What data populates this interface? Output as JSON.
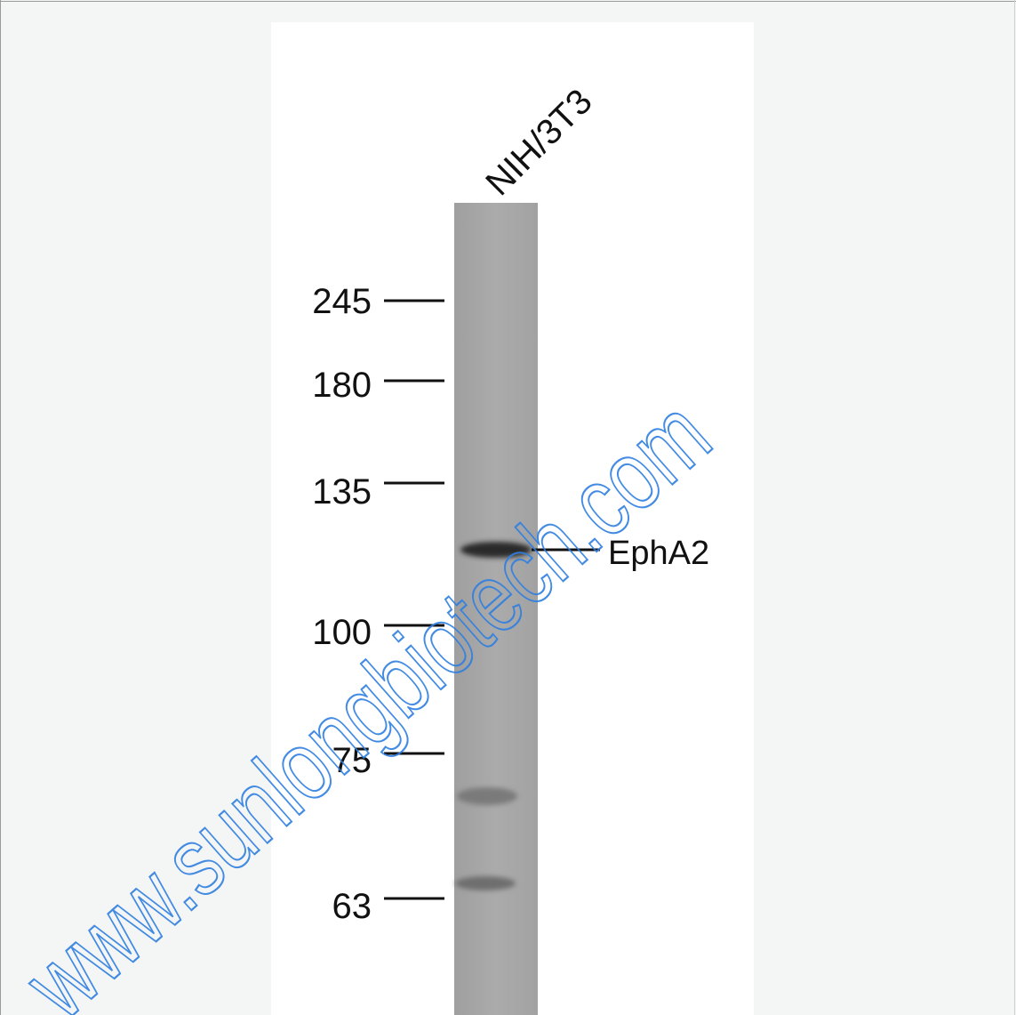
{
  "lane_label": "NIH/3T3",
  "markers": [
    "245",
    "180",
    "135",
    "100",
    "75",
    "63"
  ],
  "band_label": "EphA2",
  "watermark": "www.sunlongbiotech.com"
}
